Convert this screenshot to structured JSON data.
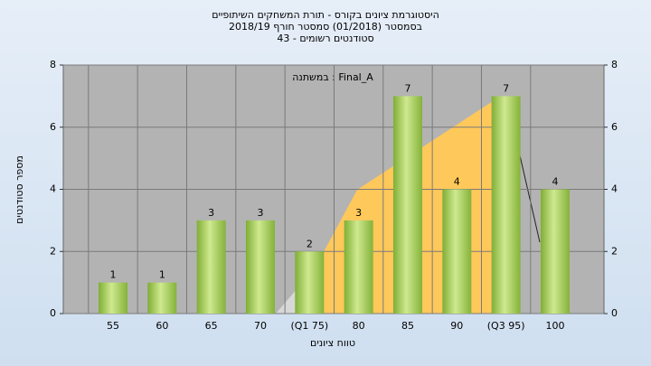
{
  "chart_data": {
    "type": "bar",
    "title": "היסטוגרמת ציונים בקורס - תורת המשחקים השיתופיים",
    "subtitle": "בסמסטר (01/2018) סמסטר חורף 2018/19",
    "subtitle2": "סטודנטים רשומים - 43",
    "annotation": "במשתנה : Final_A",
    "y_label": "מספר סטודנטים",
    "x_label": "טווח ציונים",
    "categories": [
      "55",
      "60",
      "65",
      "70",
      "(Q1 75)",
      "80",
      "85",
      "90",
      "(Q3 95)",
      "100"
    ],
    "values": [
      1,
      1,
      3,
      3,
      2,
      3,
      7,
      4,
      7,
      4
    ],
    "ylim": [
      0,
      8
    ],
    "yticks": [
      0,
      2,
      4,
      6,
      8
    ],
    "y2lim": [
      0,
      8
    ],
    "y2ticks": [
      0,
      2,
      4,
      6,
      8
    ],
    "grid": true
  }
}
